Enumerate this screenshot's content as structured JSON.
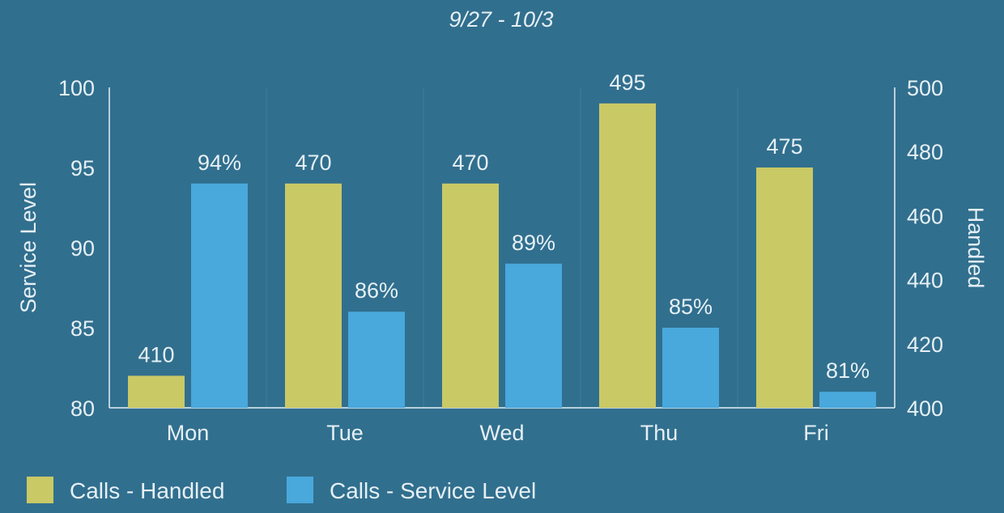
{
  "chart_data": {
    "type": "bar",
    "title": "9/27 - 10/3",
    "categories": [
      "Mon",
      "Tue",
      "Wed",
      "Thu",
      "Fri"
    ],
    "series": [
      {
        "name": "Calls - Handled",
        "axis": "right",
        "color": "#c9c966",
        "values": [
          410,
          470,
          470,
          495,
          475
        ],
        "labels": [
          "410",
          "470",
          "470",
          "495",
          "475"
        ]
      },
      {
        "name": "Calls - Service Level",
        "axis": "left",
        "color": "#49a8dc",
        "values": [
          94,
          86,
          89,
          85,
          81
        ],
        "labels": [
          "94%",
          "86%",
          "89%",
          "85%",
          "81%"
        ]
      }
    ],
    "y_left": {
      "label": "Service Level",
      "range": [
        80,
        100
      ],
      "ticks": [
        "100",
        "95",
        "90",
        "85",
        "80"
      ]
    },
    "y_right": {
      "label": "Handled",
      "range": [
        400,
        500
      ],
      "ticks": [
        "500",
        "480",
        "460",
        "440",
        "420",
        "400"
      ]
    },
    "legend_position": "bottom-left",
    "grid": "vertical-separators"
  }
}
